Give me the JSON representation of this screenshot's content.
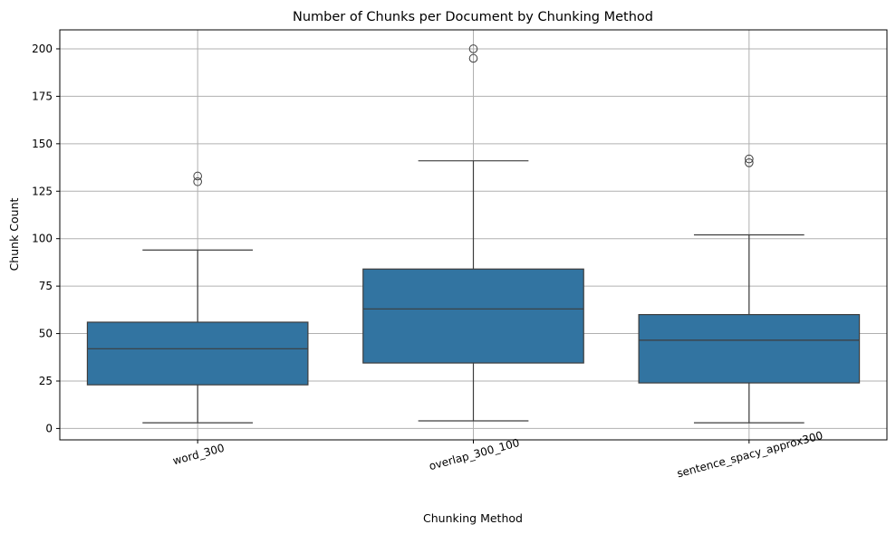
{
  "chart_data": {
    "type": "box",
    "title": "Number of Chunks per Document by Chunking Method",
    "xlabel": "Chunking Method",
    "ylabel": "Chunk Count",
    "ylim": [
      -6,
      210
    ],
    "yticks": [
      0,
      25,
      50,
      75,
      100,
      125,
      150,
      175,
      200
    ],
    "grid": true,
    "box_color": "#3274a1",
    "line_color": "#3d3d3d",
    "grid_color": "#b0b0b0",
    "categories": [
      "word_300",
      "overlap_300_100",
      "sentence_spacy_approx300"
    ],
    "boxes": [
      {
        "whisker_low": 3,
        "q1": 23,
        "median": 42,
        "q3": 56,
        "whisker_high": 94,
        "outliers": [
          130,
          133
        ]
      },
      {
        "whisker_low": 4,
        "q1": 34.5,
        "median": 63,
        "q3": 84,
        "whisker_high": 141,
        "outliers": [
          195,
          200
        ]
      },
      {
        "whisker_low": 3,
        "q1": 24,
        "median": 46.5,
        "q3": 60,
        "whisker_high": 102,
        "outliers": [
          140,
          142
        ]
      }
    ]
  }
}
